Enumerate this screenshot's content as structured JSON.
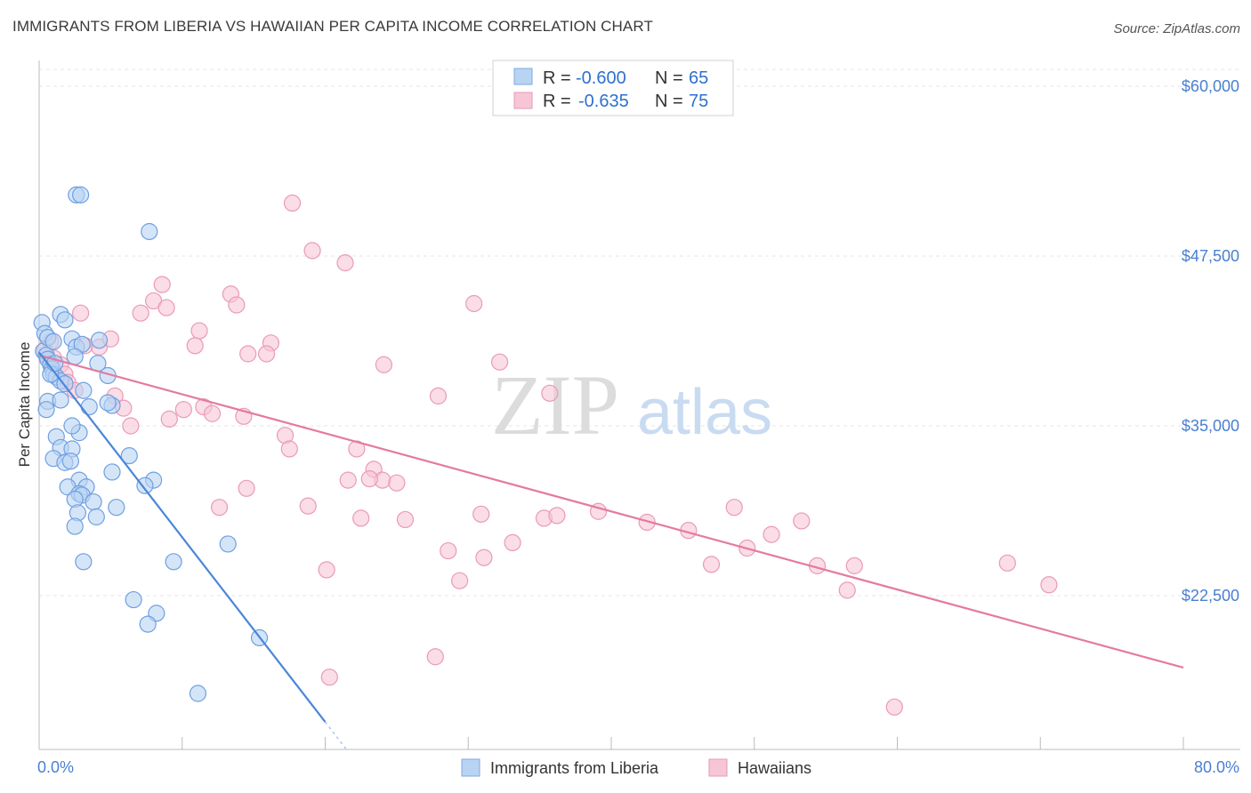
{
  "header": {
    "title": "IMMIGRANTS FROM LIBERIA VS HAWAIIAN PER CAPITA INCOME CORRELATION CHART",
    "source": "Source: ZipAtlas.com"
  },
  "watermark": {
    "zip": "ZIP",
    "atlas": "atlas"
  },
  "legend": {
    "r_label": "R =",
    "n_label": "N =",
    "series": [
      {
        "r": "-0.600",
        "n": "65"
      },
      {
        "r": "-0.635",
        "n": "75"
      }
    ]
  },
  "chart_data": {
    "type": "scatter",
    "title": "IMMIGRANTS FROM LIBERIA VS HAWAIIAN PER CAPITA INCOME CORRELATION CHART",
    "xlabel": "",
    "ylabel": "Per Capita Income",
    "xlim": [
      0,
      80
    ],
    "ylim": [
      10500,
      62500
    ],
    "x_tick_labels": [
      "0.0%",
      "80.0%"
    ],
    "y_ticks": [
      22500,
      35000,
      47500,
      60000
    ],
    "y_tick_labels": [
      "$22,500",
      "$35,000",
      "$47,500",
      "$60,000"
    ],
    "colors": {
      "liberia": "#4a86d8",
      "hawaiian": "#e47aa0",
      "liberia_fill": "#b9d3f3",
      "hawaiian_fill": "#f7c6d6"
    },
    "series": [
      {
        "name": "Immigrants from Liberia",
        "trend": {
          "x": [
            0.0,
            20.0
          ],
          "y": [
            40400,
            13200
          ]
        },
        "points": [
          [
            0.2,
            42600
          ],
          [
            0.4,
            41800
          ],
          [
            0.3,
            40500
          ],
          [
            0.5,
            40200
          ],
          [
            0.6,
            39900
          ],
          [
            0.8,
            39500
          ],
          [
            0.9,
            39200
          ],
          [
            1.0,
            38800
          ],
          [
            1.2,
            38600
          ],
          [
            1.5,
            38300
          ],
          [
            1.8,
            38100
          ],
          [
            0.6,
            41500
          ],
          [
            1.0,
            41200
          ],
          [
            1.5,
            43200
          ],
          [
            1.8,
            42800
          ],
          [
            2.3,
            41400
          ],
          [
            2.6,
            40800
          ],
          [
            3.0,
            41000
          ],
          [
            4.2,
            41300
          ],
          [
            2.5,
            40100
          ],
          [
            4.1,
            39600
          ],
          [
            4.8,
            38700
          ],
          [
            3.1,
            37600
          ],
          [
            0.6,
            36800
          ],
          [
            0.5,
            36200
          ],
          [
            3.5,
            36400
          ],
          [
            5.1,
            36500
          ],
          [
            4.8,
            36700
          ],
          [
            1.2,
            34200
          ],
          [
            2.8,
            34500
          ],
          [
            2.3,
            35000
          ],
          [
            1.5,
            33400
          ],
          [
            2.3,
            33300
          ],
          [
            6.3,
            32800
          ],
          [
            1.0,
            32600
          ],
          [
            1.8,
            32300
          ],
          [
            2.2,
            32400
          ],
          [
            5.1,
            31600
          ],
          [
            2.8,
            31000
          ],
          [
            8.0,
            31000
          ],
          [
            2.0,
            30500
          ],
          [
            3.3,
            30500
          ],
          [
            7.4,
            30600
          ],
          [
            2.8,
            30000
          ],
          [
            3.0,
            29900
          ],
          [
            2.5,
            29600
          ],
          [
            3.8,
            29400
          ],
          [
            5.4,
            29000
          ],
          [
            2.7,
            28600
          ],
          [
            4.0,
            28300
          ],
          [
            2.5,
            27600
          ],
          [
            13.2,
            26300
          ],
          [
            3.1,
            25000
          ],
          [
            9.4,
            25000
          ],
          [
            6.6,
            22200
          ],
          [
            8.2,
            21200
          ],
          [
            7.6,
            20400
          ],
          [
            15.4,
            19400
          ],
          [
            11.1,
            15300
          ],
          [
            2.6,
            52000
          ],
          [
            2.9,
            52000
          ],
          [
            7.7,
            49300
          ],
          [
            1.5,
            36900
          ],
          [
            0.8,
            38800
          ],
          [
            1.1,
            39600
          ]
        ]
      },
      {
        "name": "Hawaiians",
        "trend": {
          "x": [
            0.0,
            80.0
          ],
          "y": [
            40200,
            17200
          ]
        },
        "points": [
          [
            0.4,
            40600
          ],
          [
            0.8,
            41200
          ],
          [
            1.0,
            40000
          ],
          [
            1.5,
            39500
          ],
          [
            1.8,
            38800
          ],
          [
            2.0,
            38200
          ],
          [
            2.5,
            37600
          ],
          [
            3.2,
            40900
          ],
          [
            4.2,
            40800
          ],
          [
            5.0,
            41400
          ],
          [
            2.9,
            43300
          ],
          [
            5.3,
            37200
          ],
          [
            5.9,
            36300
          ],
          [
            8.0,
            44200
          ],
          [
            7.1,
            43300
          ],
          [
            8.9,
            43700
          ],
          [
            8.6,
            45400
          ],
          [
            11.2,
            42000
          ],
          [
            10.9,
            40900
          ],
          [
            9.1,
            35500
          ],
          [
            10.1,
            36200
          ],
          [
            11.5,
            36400
          ],
          [
            12.1,
            35900
          ],
          [
            13.4,
            44700
          ],
          [
            13.8,
            43900
          ],
          [
            14.3,
            35700
          ],
          [
            14.6,
            40300
          ],
          [
            16.2,
            41100
          ],
          [
            15.9,
            40300
          ],
          [
            17.7,
            51400
          ],
          [
            19.1,
            47900
          ],
          [
            21.4,
            47000
          ],
          [
            17.2,
            34300
          ],
          [
            17.5,
            33300
          ],
          [
            14.5,
            30400
          ],
          [
            12.6,
            29000
          ],
          [
            18.8,
            29100
          ],
          [
            22.2,
            33300
          ],
          [
            21.6,
            31000
          ],
          [
            23.4,
            31800
          ],
          [
            24.0,
            31000
          ],
          [
            23.1,
            31100
          ],
          [
            25.0,
            30800
          ],
          [
            22.5,
            28200
          ],
          [
            25.6,
            28100
          ],
          [
            20.1,
            24400
          ],
          [
            24.1,
            39500
          ],
          [
            27.9,
            37200
          ],
          [
            30.4,
            44000
          ],
          [
            32.2,
            39700
          ],
          [
            35.7,
            37400
          ],
          [
            28.6,
            25800
          ],
          [
            29.4,
            23600
          ],
          [
            30.9,
            28500
          ],
          [
            31.1,
            25300
          ],
          [
            33.1,
            26400
          ],
          [
            35.3,
            28200
          ],
          [
            36.2,
            28400
          ],
          [
            39.1,
            28700
          ],
          [
            42.5,
            27900
          ],
          [
            45.4,
            27300
          ],
          [
            47.0,
            24800
          ],
          [
            49.5,
            26000
          ],
          [
            51.2,
            27000
          ],
          [
            53.3,
            28000
          ],
          [
            48.6,
            29000
          ],
          [
            54.4,
            24700
          ],
          [
            56.5,
            22900
          ],
          [
            57.0,
            24700
          ],
          [
            59.8,
            14300
          ],
          [
            67.7,
            24900
          ],
          [
            70.6,
            23300
          ],
          [
            6.4,
            35000
          ],
          [
            20.3,
            16500
          ],
          [
            27.7,
            18000
          ]
        ]
      }
    ],
    "legend_entries": [
      "Immigrants from Liberia",
      "Hawaiians"
    ]
  }
}
